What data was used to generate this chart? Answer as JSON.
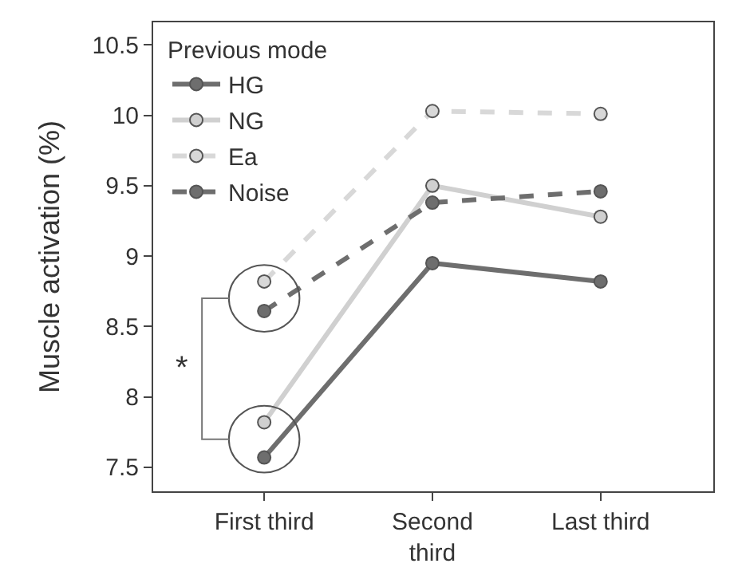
{
  "chart_data": {
    "type": "line",
    "ylabel": "Muscle activation (%)",
    "legend_title": "Previous mode",
    "categories": [
      "First third",
      "Second third",
      "Last third"
    ],
    "series": [
      {
        "name": "HG",
        "color": "#6e6e6e",
        "line_style": "solid",
        "values": [
          7.57,
          8.95,
          8.82
        ]
      },
      {
        "name": "NG",
        "color": "#d0d0d0",
        "line_style": "solid",
        "values": [
          7.82,
          9.5,
          9.28
        ]
      },
      {
        "name": "Ea",
        "color": "#d8d8d8",
        "line_style": "dashed",
        "values": [
          8.82,
          10.03,
          10.01
        ]
      },
      {
        "name": "Noise",
        "color": "#6e6e6e",
        "line_style": "dashed",
        "values": [
          8.61,
          9.38,
          9.46
        ]
      }
    ],
    "ylim": [
      7.33,
      10.66
    ],
    "yticks": [
      7.5,
      8,
      8.5,
      9,
      9.5,
      10,
      10.5
    ],
    "annotations": [
      "*"
    ],
    "marker": "circle",
    "legend": "top left"
  }
}
